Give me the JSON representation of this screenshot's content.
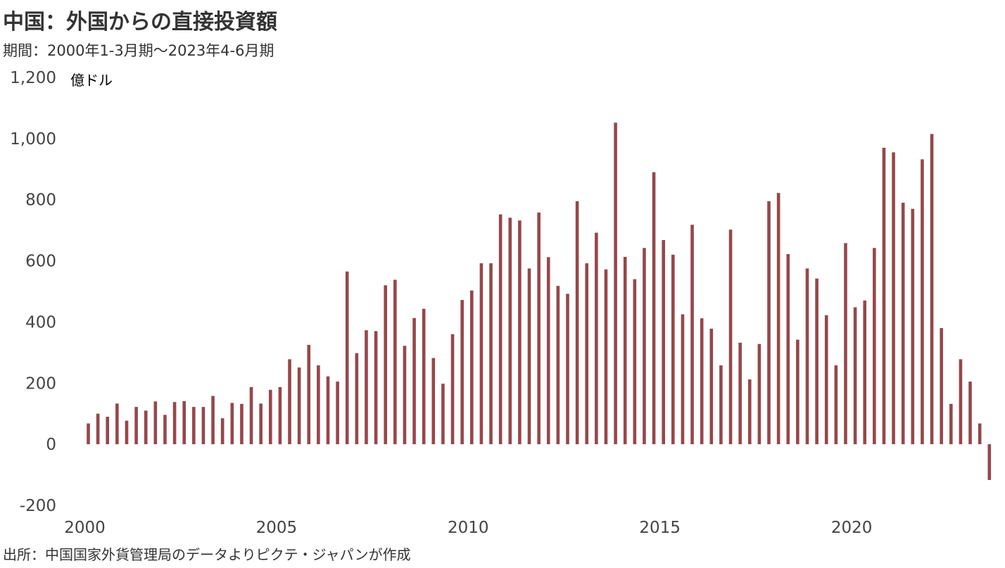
{
  "title": "中国：外国からの直接投資額",
  "subtitle": "期間：2000年1-3月期～2023年4-6月期",
  "source": "出所：中国国家外貨管理局のデータよりピクテ・ジャパンが作成",
  "chart_data": {
    "type": "bar",
    "unit_label": "億ドル",
    "ylim": [
      -200,
      1200
    ],
    "y_ticks": [
      1200,
      1000,
      800,
      600,
      400,
      200,
      0,
      -200
    ],
    "y_tick_labels": [
      "1,200",
      "1,000",
      "800",
      "600",
      "400",
      "200",
      "0",
      "-200"
    ],
    "x_tick_labels": [
      "2000",
      "2005",
      "2010",
      "2015",
      "2020"
    ],
    "x_tick_years": [
      2000,
      2005,
      2010,
      2015,
      2020
    ],
    "start": "2000-Q1",
    "grid": false,
    "bar_color": "#96474a",
    "negative_label_color": "#e8262b",
    "values": [
      68,
      100,
      90,
      133,
      77,
      122,
      110,
      140,
      96,
      138,
      141,
      122,
      122,
      158,
      85,
      135,
      132,
      187,
      133,
      178,
      187,
      278,
      251,
      325,
      258,
      222,
      205,
      565,
      298,
      373,
      370,
      520,
      538,
      322,
      413,
      443,
      282,
      198,
      360,
      472,
      503,
      592,
      592,
      752,
      741,
      732,
      575,
      758,
      612,
      518,
      492,
      795,
      592,
      692,
      572,
      1052,
      613,
      540,
      642,
      890,
      668,
      620,
      425,
      718,
      412,
      378,
      258,
      702,
      332,
      212,
      328,
      795,
      822,
      622,
      342,
      575,
      542,
      422,
      258,
      658,
      448,
      470,
      642,
      970,
      955,
      790,
      770,
      932,
      1015,
      380,
      132,
      278,
      205,
      68,
      -117
    ]
  }
}
